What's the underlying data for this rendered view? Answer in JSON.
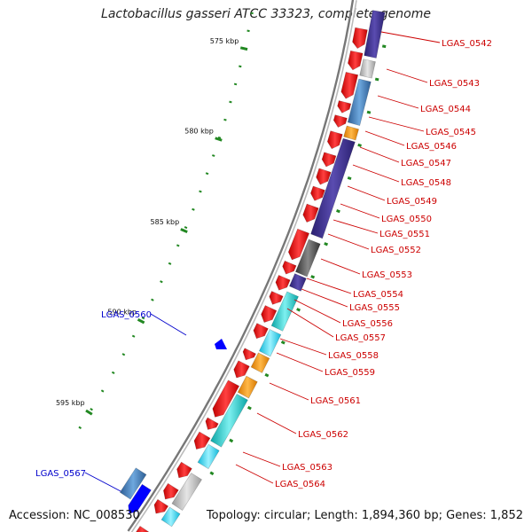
{
  "title": "Lactobacillus gasseri ATCC 33323, complete genome",
  "footer": {
    "accession": "Accession: NC_008530",
    "summary": "Topology: circular; Length: 1,894,360 bp; Genes: 1,852"
  },
  "colors": {
    "forward": "#ee1111",
    "reverse": "#0000ff",
    "backbone": "#888888",
    "tick": "#228822",
    "label_forward": "#cc0000",
    "label_reverse": "#0000cc"
  },
  "scale": {
    "ticks": [
      "575 kbp",
      "580 kbp",
      "585 kbp",
      "590 kbp",
      "595 kbp"
    ]
  },
  "gene_labels": [
    {
      "name": "LGAS_0542",
      "strand": "forward"
    },
    {
      "name": "LGAS_0543",
      "strand": "forward"
    },
    {
      "name": "LGAS_0544",
      "strand": "forward"
    },
    {
      "name": "LGAS_0545",
      "strand": "forward"
    },
    {
      "name": "LGAS_0546",
      "strand": "forward"
    },
    {
      "name": "LGAS_0547",
      "strand": "forward"
    },
    {
      "name": "LGAS_0548",
      "strand": "forward"
    },
    {
      "name": "LGAS_0549",
      "strand": "forward"
    },
    {
      "name": "LGAS_0550",
      "strand": "forward"
    },
    {
      "name": "LGAS_0551",
      "strand": "forward"
    },
    {
      "name": "LGAS_0552",
      "strand": "forward"
    },
    {
      "name": "LGAS_0553",
      "strand": "forward"
    },
    {
      "name": "LGAS_0554",
      "strand": "forward"
    },
    {
      "name": "LGAS_0555",
      "strand": "forward"
    },
    {
      "name": "LGAS_0556",
      "strand": "forward"
    },
    {
      "name": "LGAS_0557",
      "strand": "forward"
    },
    {
      "name": "LGAS_0558",
      "strand": "forward"
    },
    {
      "name": "LGAS_0559",
      "strand": "forward"
    },
    {
      "name": "LGAS_0561",
      "strand": "forward"
    },
    {
      "name": "LGAS_0562",
      "strand": "forward"
    },
    {
      "name": "LGAS_0563",
      "strand": "forward"
    },
    {
      "name": "LGAS_0564",
      "strand": "forward"
    },
    {
      "name": "LGAS_0560",
      "strand": "reverse"
    },
    {
      "name": "LGAS_0567",
      "strand": "reverse"
    }
  ]
}
